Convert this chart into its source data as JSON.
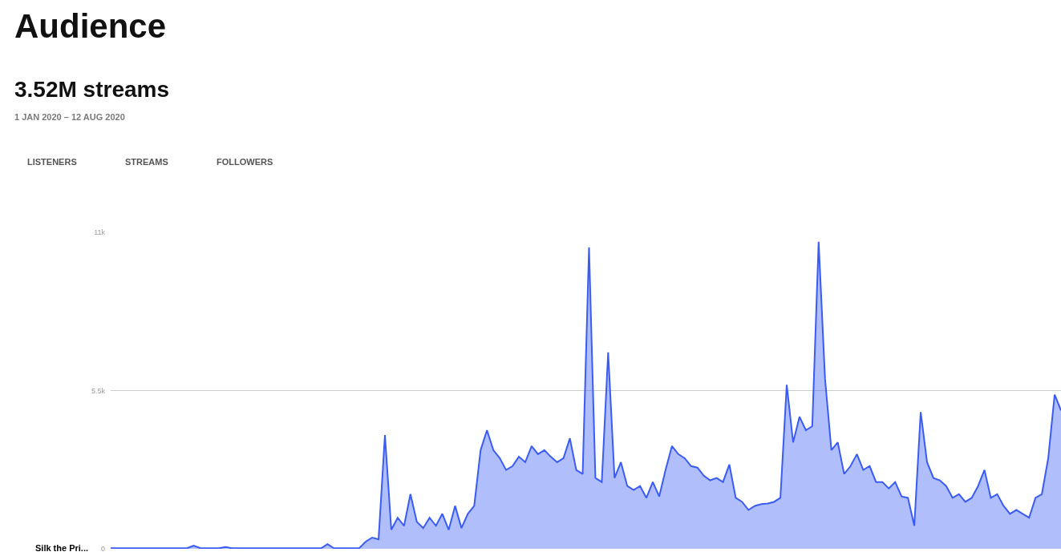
{
  "chart_data": {
    "type": "area",
    "title": "Audience",
    "subtitle": "3.52M streams",
    "annotations": [
      "1 JAN 2020 – 12 AUG 2020",
      "LISTENERS",
      "STREAMS",
      "FOLLOWERS"
    ],
    "categories": [
      null,
      null,
      null,
      null,
      null,
      null,
      null,
      null,
      null,
      null,
      null,
      null,
      null,
      null,
      null,
      null,
      null,
      null,
      null,
      null,
      null,
      null,
      null,
      null,
      null,
      null,
      null,
      null,
      null,
      null,
      null,
      null,
      null,
      null,
      null,
      null,
      null,
      null,
      null,
      null,
      null,
      null,
      null,
      null,
      null,
      null,
      null,
      null,
      null,
      null,
      null,
      null,
      null,
      null,
      null,
      null,
      null,
      null,
      null,
      null,
      null,
      null,
      null,
      null,
      null,
      null,
      null,
      null,
      null,
      null,
      null,
      null,
      null,
      null,
      null,
      null,
      null,
      null,
      null,
      null,
      null,
      null,
      null,
      null,
      null,
      null,
      null,
      null,
      null,
      null,
      null,
      null,
      null,
      null,
      null,
      null,
      null,
      null,
      null,
      null,
      null,
      null,
      null,
      null,
      null,
      null,
      null,
      null,
      null,
      null,
      null,
      null,
      null,
      null,
      null,
      null,
      null,
      null,
      null,
      null,
      null,
      null,
      null,
      null,
      null,
      null,
      null,
      null,
      null,
      null,
      null,
      null,
      null,
      null,
      null,
      null,
      null,
      null,
      null,
      null,
      null,
      null,
      null,
      null,
      null,
      null,
      null,
      null,
      null,
      null
    ],
    "series": [
      {
        "name": "Silk the Pri...",
        "color": "#3a5cf5",
        "values": [
          20,
          20,
          20,
          20,
          20,
          20,
          20,
          20,
          20,
          20,
          20,
          20,
          20,
          110,
          30,
          20,
          20,
          20,
          60,
          20,
          20,
          20,
          20,
          20,
          20,
          20,
          20,
          20,
          20,
          20,
          20,
          20,
          20,
          20,
          160,
          20,
          20,
          20,
          20,
          30,
          250,
          390,
          330,
          3950,
          660,
          1080,
          800,
          1900,
          940,
          720,
          1080,
          800,
          1216,
          660,
          1493,
          720,
          1216,
          1493,
          3430,
          4120,
          3430,
          3150,
          2740,
          2875,
          3200,
          3010,
          3570,
          3290,
          3430,
          3200,
          3010,
          3150,
          3840,
          2740,
          2600,
          10480,
          2460,
          2320,
          6830,
          2460,
          3010,
          2180,
          2045,
          2180,
          1770,
          2320,
          1820,
          2740,
          3570,
          3290,
          3150,
          2875,
          2820,
          2540,
          2380,
          2460,
          2320,
          2930,
          1770,
          1630,
          1350,
          1490,
          1550,
          1575,
          1630,
          1770,
          5700,
          3700,
          4590,
          4120,
          4260,
          10670,
          5920,
          3430,
          3700,
          2600,
          2875,
          3290,
          2740,
          2875,
          2320,
          2320,
          2100,
          2320,
          1820,
          1770,
          800,
          4750,
          3010,
          2460,
          2380,
          2180,
          1770,
          1900,
          1630,
          1770,
          2180,
          2740,
          1770,
          1900,
          1490,
          1216,
          1350,
          1216,
          1080,
          1770,
          1900,
          3150,
          5360,
          4810
        ]
      }
    ],
    "ylim": [
      0,
      11000
    ],
    "yticks": [
      0,
      {
        "value": 5500,
        "label": "5.5k"
      },
      {
        "value": 11000,
        "label": "11k"
      }
    ],
    "grid": "y",
    "legend": false,
    "marker": "none",
    "line_style": "solid",
    "tick_labels": "y"
  }
}
